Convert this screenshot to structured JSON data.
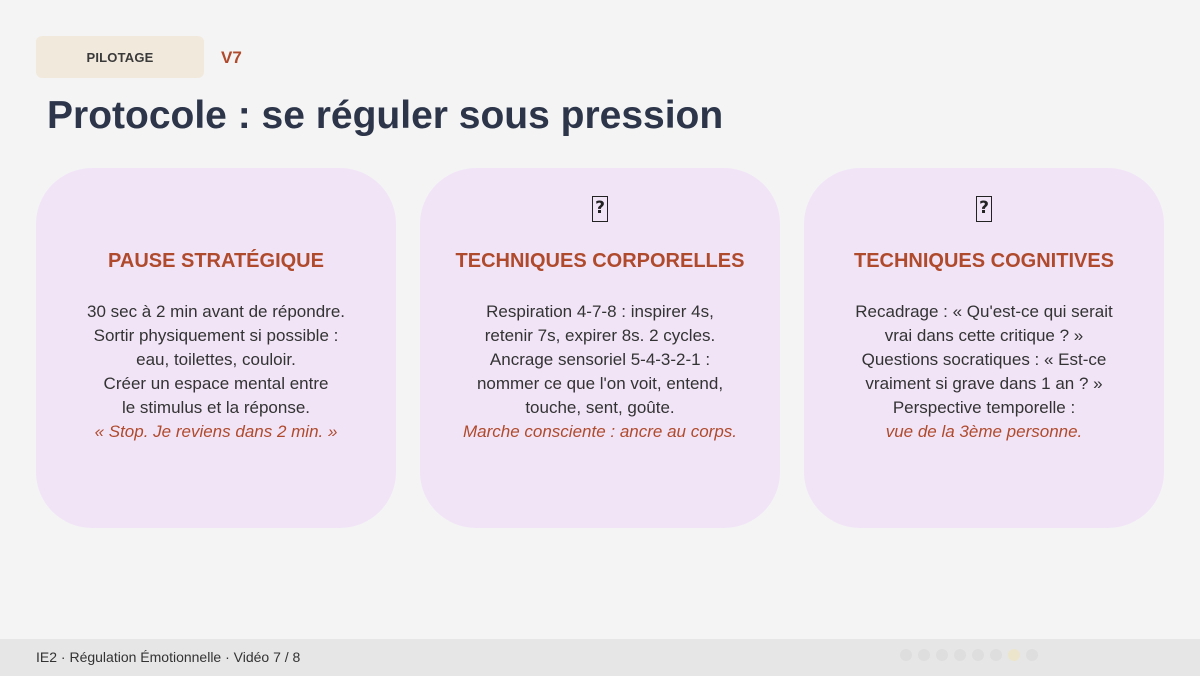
{
  "header": {
    "tag": "PILOTAGE",
    "version": "V7",
    "title": "Protocole : se réguler sous pression"
  },
  "cards": [
    {
      "icon": "",
      "title": "PAUSE STRATÉGIQUE",
      "lines": [
        "30 sec à 2 min avant de répondre.",
        "Sortir physiquement si possible :",
        "eau, toilettes, couloir.",
        "Créer un espace mental entre",
        "le stimulus et la réponse."
      ],
      "accent": "« Stop. Je reviens dans 2 min. »"
    },
    {
      "icon": "?",
      "title": "TECHNIQUES CORPORELLES",
      "lines": [
        "Respiration 4-7-8 : inspirer 4s,",
        "retenir 7s, expirer 8s. 2 cycles.",
        "Ancrage sensoriel 5-4-3-2-1 :",
        "nommer ce que l'on voit, entend,",
        "touche, sent, goûte."
      ],
      "accent": "Marche consciente : ancre au corps."
    },
    {
      "icon": "?",
      "title": "TECHNIQUES COGNITIVES",
      "lines": [
        "Recadrage : « Qu'est-ce qui serait",
        "vrai dans cette critique ? »",
        "Questions socratiques : « Est-ce",
        "vraiment si grave dans 1 an ? »",
        "Perspective temporelle :"
      ],
      "accent": "vue de la 3ème personne."
    }
  ],
  "footer": {
    "text": "IE2 · Régulation Émotionnelle · Vidéo 7 / 8",
    "progress": {
      "current": 7,
      "total": 8
    }
  }
}
